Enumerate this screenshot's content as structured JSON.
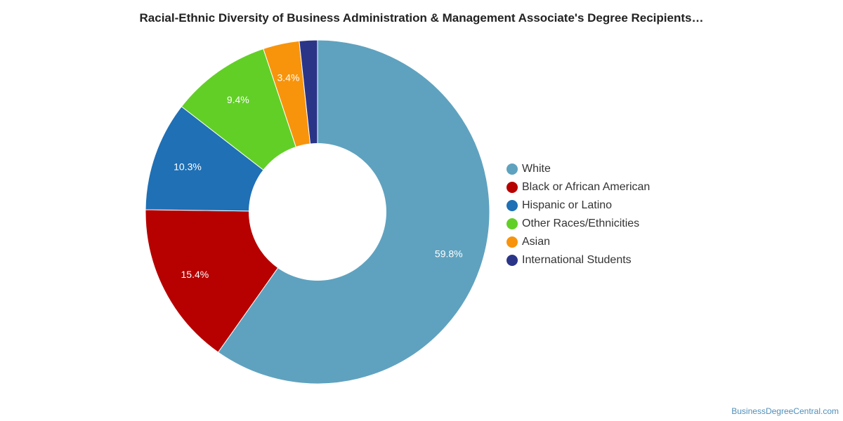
{
  "title": "Racial-Ethnic Diversity of Business Administration & Management Associate's Degree Recipients…",
  "credit": "BusinessDegreeCentral.com",
  "chart_data": {
    "type": "pie",
    "donut": true,
    "legend_position": "right",
    "slices": [
      {
        "label": "White",
        "value": 59.8,
        "value_label": "59.8%",
        "color": "#5fa2bf"
      },
      {
        "label": "Black or African American",
        "value": 15.4,
        "value_label": "15.4%",
        "color": "#b70000"
      },
      {
        "label": "Hispanic or Latino",
        "value": 10.3,
        "value_label": "10.3%",
        "color": "#1f70b5"
      },
      {
        "label": "Other Races/Ethnicities",
        "value": 9.4,
        "value_label": "9.4%",
        "color": "#62cf27"
      },
      {
        "label": "Asian",
        "value": 3.4,
        "value_label": "3.4%",
        "color": "#f7940c"
      },
      {
        "label": "International Students",
        "value": 1.7,
        "value_label": "",
        "color": "#2b3588"
      }
    ]
  }
}
